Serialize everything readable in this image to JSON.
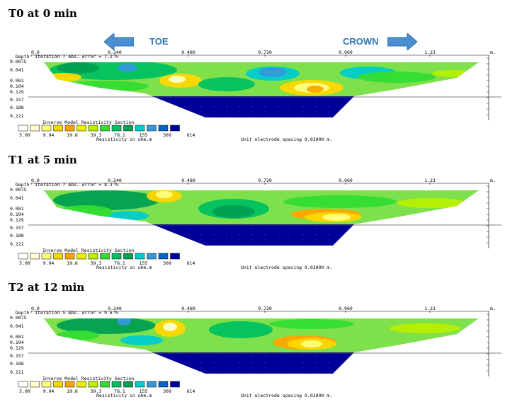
{
  "direction_labels": {
    "left": "TOE",
    "right": "CROWN"
  },
  "common": {
    "depth_label": "Depth",
    "x_ticks": [
      "0.0",
      "0.240",
      "0.480",
      "0.720",
      "0.960",
      "1.23"
    ],
    "x_unit": "m.",
    "depth_ticks": [
      "0.0075",
      "0.041",
      "0.081",
      "0.104",
      "0.129",
      "0.157",
      "0.188",
      "0.221"
    ],
    "legend_title": "Inverse Model Resistivity Section",
    "legend_values": [
      "5.00",
      "9.94",
      "19.8",
      "39.3",
      "78.1",
      "155",
      "309",
      "614"
    ],
    "legend_colors": [
      "#ffffff",
      "#ffffcc",
      "#ffff80",
      "#ffd700",
      "#ffa500",
      "#e8f000",
      "#b8f000",
      "#33dd33",
      "#00c060",
      "#00a050",
      "#00cccc",
      "#3399dd",
      "#0066cc",
      "#000099"
    ],
    "resistivity_label": "Resistivity in ohm.m",
    "spacing_label": "Unit electrode spacing 0.03000 m."
  },
  "panels": [
    {
      "title": "T0 at 0 min",
      "iteration": "Iteration 7 Abs. error = 7.2 %"
    },
    {
      "title": "T1 at 5 min",
      "iteration": "Iteration 7 Abs. error = 8.3 %"
    },
    {
      "title": "T2 at 12 min",
      "iteration": "Iteration 5 Abs. error = 9.6 %"
    }
  ]
}
